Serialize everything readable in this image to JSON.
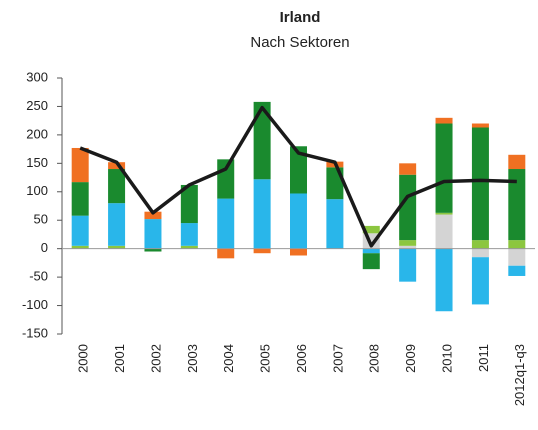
{
  "chart_data": {
    "type": "stacked-bar",
    "title": "Irland",
    "subtitle": "Nach Sektoren",
    "categories": [
      "2000",
      "2001",
      "2002",
      "2003",
      "2004",
      "2005",
      "2006",
      "2007",
      "2008",
      "2009",
      "2010",
      "2011",
      "2012q1-q3"
    ],
    "series": [
      {
        "color": "#d4d4d4",
        "values": [
          0,
          0,
          0,
          0,
          0,
          0,
          0,
          0,
          27,
          5,
          60,
          -15,
          -30
        ]
      },
      {
        "color": "#8cc63f",
        "values": [
          5,
          5,
          0,
          5,
          0,
          0,
          0,
          0,
          13,
          10,
          3,
          15,
          15
        ]
      },
      {
        "color": "#29b6ea",
        "values": [
          53,
          75,
          52,
          40,
          88,
          122,
          97,
          87,
          -8,
          -58,
          -110,
          -83,
          -18
        ]
      },
      {
        "color": "#1a8a2e",
        "values": [
          59,
          60,
          -5,
          67,
          69,
          136,
          83,
          56,
          -28,
          115,
          157,
          198,
          125
        ]
      },
      {
        "color": "#f07022",
        "values": [
          60,
          12,
          13,
          0,
          -17,
          -8,
          -12,
          10,
          0,
          20,
          10,
          7,
          25
        ]
      }
    ],
    "line": {
      "color": "#1a1a1a",
      "values": [
        177,
        152,
        63,
        112,
        140,
        248,
        168,
        152,
        5,
        92,
        118,
        120,
        118
      ]
    },
    "ylim": [
      -150,
      300
    ],
    "yticks": [
      -150,
      -100,
      -50,
      0,
      50,
      100,
      150,
      200,
      250,
      300
    ]
  }
}
